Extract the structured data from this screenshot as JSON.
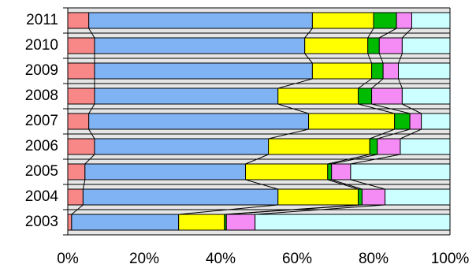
{
  "chart_data": {
    "type": "bar",
    "stacked": true,
    "percent": true,
    "orientation": "horizontal",
    "categories": [
      "2011",
      "2010",
      "2009",
      "2008",
      "2007",
      "2006",
      "2005",
      "2004",
      "2003"
    ],
    "series": [
      {
        "color": "#f88888",
        "values": [
          5.5,
          7,
          7,
          7,
          5.5,
          7,
          4.5,
          4,
          1
        ]
      },
      {
        "color": "#80b3f4",
        "values": [
          58.5,
          55,
          57,
          48,
          57.5,
          45.5,
          42,
          51,
          28
        ]
      },
      {
        "color": "#ffff00",
        "values": [
          16,
          16.5,
          15.5,
          21,
          22.5,
          26.5,
          21.5,
          21,
          12
        ]
      },
      {
        "color": "#00bb00",
        "values": [
          6,
          3,
          3,
          3.5,
          4,
          2,
          1,
          1,
          0.5
        ]
      },
      {
        "color": "#f58cf5",
        "values": [
          4,
          6,
          4,
          8,
          3,
          6,
          5,
          6,
          7.5
        ]
      },
      {
        "color": "#ccffff",
        "values": [
          10,
          12.5,
          13.5,
          12.5,
          7.5,
          13,
          26,
          17,
          51
        ]
      }
    ],
    "x_ticks": [
      "0%",
      "20%",
      "40%",
      "60%",
      "80%",
      "100%"
    ],
    "xlim": [
      0,
      100
    ],
    "grid": true,
    "legend": "none",
    "series_lines": true,
    "title": "",
    "xlabel": "",
    "ylabel": ""
  }
}
